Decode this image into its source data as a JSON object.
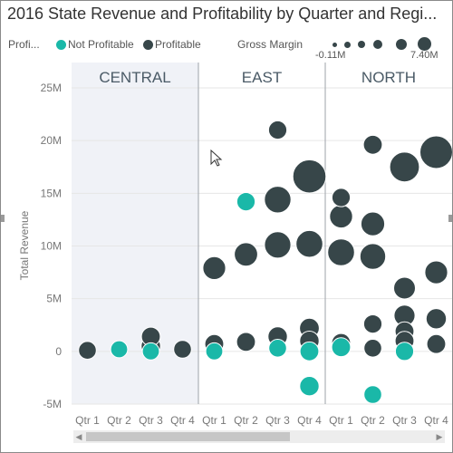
{
  "chart_data": {
    "type": "scatter",
    "title": "2016 State Revenue and Profitability by Quarter and Regi...",
    "legend": {
      "color_label": "Profi...",
      "color_items": [
        {
          "label": "Not Profitable",
          "color": "#1ab8a8"
        },
        {
          "label": "Profitable",
          "color": "#374649"
        }
      ],
      "size_label": "Gross Margin",
      "size_min_label": "-0.11M",
      "size_max_label": "7.40M"
    },
    "ylabel": "Total Revenue",
    "y_ticks": [
      "25M",
      "20M",
      "15M",
      "10M",
      "5M",
      "0",
      "-5M"
    ],
    "y_tick_values": [
      25,
      20,
      15,
      10,
      5,
      0,
      -5
    ],
    "ylim": [
      -5,
      25
    ],
    "panels": [
      "CENTRAL",
      "EAST",
      "NORTH"
    ],
    "x_categories": [
      "Qtr 1",
      "Qtr 2",
      "Qtr 3",
      "Qtr 4"
    ],
    "x_tick_labels": [
      "Qtr 1",
      "Qtr 2",
      "Qtr 3",
      "Qtr 4",
      "Qtr 1",
      "Qtr 2",
      "Qtr 3",
      "Qtr 4",
      "Qtr 1",
      "Qtr 2",
      "Qtr 3",
      "Qtr 4"
    ],
    "points": [
      {
        "panel": "CENTRAL",
        "quarter": "Qtr 1",
        "revenue_m": 0.1,
        "gross_margin_m": 0.3,
        "profitable": true
      },
      {
        "panel": "CENTRAL",
        "quarter": "Qtr 2",
        "revenue_m": 0.2,
        "gross_margin_m": 0.2,
        "profitable": false
      },
      {
        "panel": "CENTRAL",
        "quarter": "Qtr 3",
        "revenue_m": 1.4,
        "gross_margin_m": 0.5,
        "profitable": true
      },
      {
        "panel": "CENTRAL",
        "quarter": "Qtr 3",
        "revenue_m": 0.5,
        "gross_margin_m": 0.6,
        "profitable": true
      },
      {
        "panel": "CENTRAL",
        "quarter": "Qtr 3",
        "revenue_m": 0.0,
        "gross_margin_m": 0.2,
        "profitable": false
      },
      {
        "panel": "CENTRAL",
        "quarter": "Qtr 4",
        "revenue_m": 0.2,
        "gross_margin_m": 0.3,
        "profitable": true
      },
      {
        "panel": "EAST",
        "quarter": "Qtr 1",
        "revenue_m": 7.9,
        "gross_margin_m": 1.5,
        "profitable": true
      },
      {
        "panel": "EAST",
        "quarter": "Qtr 1",
        "revenue_m": 0.7,
        "gross_margin_m": 0.5,
        "profitable": true
      },
      {
        "panel": "EAST",
        "quarter": "Qtr 1",
        "revenue_m": 0.0,
        "gross_margin_m": 0.2,
        "profitable": false
      },
      {
        "panel": "EAST",
        "quarter": "Qtr 2",
        "revenue_m": 14.2,
        "gross_margin_m": 0.4,
        "profitable": false
      },
      {
        "panel": "EAST",
        "quarter": "Qtr 2",
        "revenue_m": 9.2,
        "gross_margin_m": 1.7,
        "profitable": true
      },
      {
        "panel": "EAST",
        "quarter": "Qtr 2",
        "revenue_m": 0.9,
        "gross_margin_m": 0.5,
        "profitable": true
      },
      {
        "panel": "EAST",
        "quarter": "Qtr 3",
        "revenue_m": 21.0,
        "gross_margin_m": 0.4,
        "profitable": true
      },
      {
        "panel": "EAST",
        "quarter": "Qtr 3",
        "revenue_m": 14.4,
        "gross_margin_m": 3.0,
        "profitable": true
      },
      {
        "panel": "EAST",
        "quarter": "Qtr 3",
        "revenue_m": 10.1,
        "gross_margin_m": 2.9,
        "profitable": true
      },
      {
        "panel": "EAST",
        "quarter": "Qtr 3",
        "revenue_m": 1.4,
        "gross_margin_m": 0.6,
        "profitable": true
      },
      {
        "panel": "EAST",
        "quarter": "Qtr 3",
        "revenue_m": 0.3,
        "gross_margin_m": 0.3,
        "profitable": false
      },
      {
        "panel": "EAST",
        "quarter": "Qtr 4",
        "revenue_m": 16.6,
        "gross_margin_m": 6.5,
        "profitable": true
      },
      {
        "panel": "EAST",
        "quarter": "Qtr 4",
        "revenue_m": 10.2,
        "gross_margin_m": 3.1,
        "profitable": true
      },
      {
        "panel": "EAST",
        "quarter": "Qtr 4",
        "revenue_m": 2.2,
        "gross_margin_m": 0.7,
        "profitable": true
      },
      {
        "panel": "EAST",
        "quarter": "Qtr 4",
        "revenue_m": 1.0,
        "gross_margin_m": 0.6,
        "profitable": true
      },
      {
        "panel": "EAST",
        "quarter": "Qtr 4",
        "revenue_m": 0.0,
        "gross_margin_m": 0.5,
        "profitable": false
      },
      {
        "panel": "EAST",
        "quarter": "Qtr 4",
        "revenue_m": -3.3,
        "gross_margin_m": 0.6,
        "profitable": false
      },
      {
        "panel": "NORTH",
        "quarter": "Qtr 1",
        "revenue_m": 14.6,
        "gross_margin_m": 0.4,
        "profitable": true
      },
      {
        "panel": "NORTH",
        "quarter": "Qtr 1",
        "revenue_m": 12.8,
        "gross_margin_m": 1.6,
        "profitable": true
      },
      {
        "panel": "NORTH",
        "quarter": "Qtr 1",
        "revenue_m": 9.4,
        "gross_margin_m": 3.1,
        "profitable": true
      },
      {
        "panel": "NORTH",
        "quarter": "Qtr 1",
        "revenue_m": 0.8,
        "gross_margin_m": 0.5,
        "profitable": true
      },
      {
        "panel": "NORTH",
        "quarter": "Qtr 1",
        "revenue_m": 0.4,
        "gross_margin_m": 0.5,
        "profitable": false
      },
      {
        "panel": "NORTH",
        "quarter": "Qtr 2",
        "revenue_m": 19.6,
        "gross_margin_m": 0.5,
        "profitable": true
      },
      {
        "panel": "NORTH",
        "quarter": "Qtr 2",
        "revenue_m": 12.1,
        "gross_margin_m": 1.8,
        "profitable": true
      },
      {
        "panel": "NORTH",
        "quarter": "Qtr 2",
        "revenue_m": 9.0,
        "gross_margin_m": 2.6,
        "profitable": true
      },
      {
        "panel": "NORTH",
        "quarter": "Qtr 2",
        "revenue_m": 2.6,
        "gross_margin_m": 0.4,
        "profitable": true
      },
      {
        "panel": "NORTH",
        "quarter": "Qtr 2",
        "revenue_m": 0.3,
        "gross_margin_m": 0.3,
        "profitable": true
      },
      {
        "panel": "NORTH",
        "quarter": "Qtr 2",
        "revenue_m": -4.1,
        "gross_margin_m": 0.3,
        "profitable": false
      },
      {
        "panel": "NORTH",
        "quarter": "Qtr 3",
        "revenue_m": 17.5,
        "gross_margin_m": 4.5,
        "profitable": true
      },
      {
        "panel": "NORTH",
        "quarter": "Qtr 3",
        "revenue_m": 6.0,
        "gross_margin_m": 1.2,
        "profitable": true
      },
      {
        "panel": "NORTH",
        "quarter": "Qtr 3",
        "revenue_m": 3.4,
        "gross_margin_m": 1.0,
        "profitable": true
      },
      {
        "panel": "NORTH",
        "quarter": "Qtr 3",
        "revenue_m": 1.9,
        "gross_margin_m": 0.5,
        "profitable": true
      },
      {
        "panel": "NORTH",
        "quarter": "Qtr 3",
        "revenue_m": 1.0,
        "gross_margin_m": 0.5,
        "profitable": true
      },
      {
        "panel": "NORTH",
        "quarter": "Qtr 3",
        "revenue_m": 0.0,
        "gross_margin_m": 0.4,
        "profitable": false
      },
      {
        "panel": "NORTH",
        "quarter": "Qtr 4",
        "revenue_m": 18.9,
        "gross_margin_m": 6.2,
        "profitable": true
      },
      {
        "panel": "NORTH",
        "quarter": "Qtr 4",
        "revenue_m": 7.5,
        "gross_margin_m": 1.5,
        "profitable": true
      },
      {
        "panel": "NORTH",
        "quarter": "Qtr 4",
        "revenue_m": 3.1,
        "gross_margin_m": 0.8,
        "profitable": true
      },
      {
        "panel": "NORTH",
        "quarter": "Qtr 4",
        "revenue_m": 0.7,
        "gross_margin_m": 0.5,
        "profitable": true
      }
    ]
  },
  "colors": {
    "profitable": "#374649",
    "not_profitable": "#1ab8a8",
    "panel_shaded": "#f0f2f7",
    "panel_divider": "#9ea3aa",
    "gridline": "#e6e6e6",
    "axis_text": "#777777"
  },
  "icons": {
    "cursor": "mouse-pointer-icon",
    "scroll_left": "chevron-left-icon",
    "scroll_right": "chevron-right-icon"
  }
}
